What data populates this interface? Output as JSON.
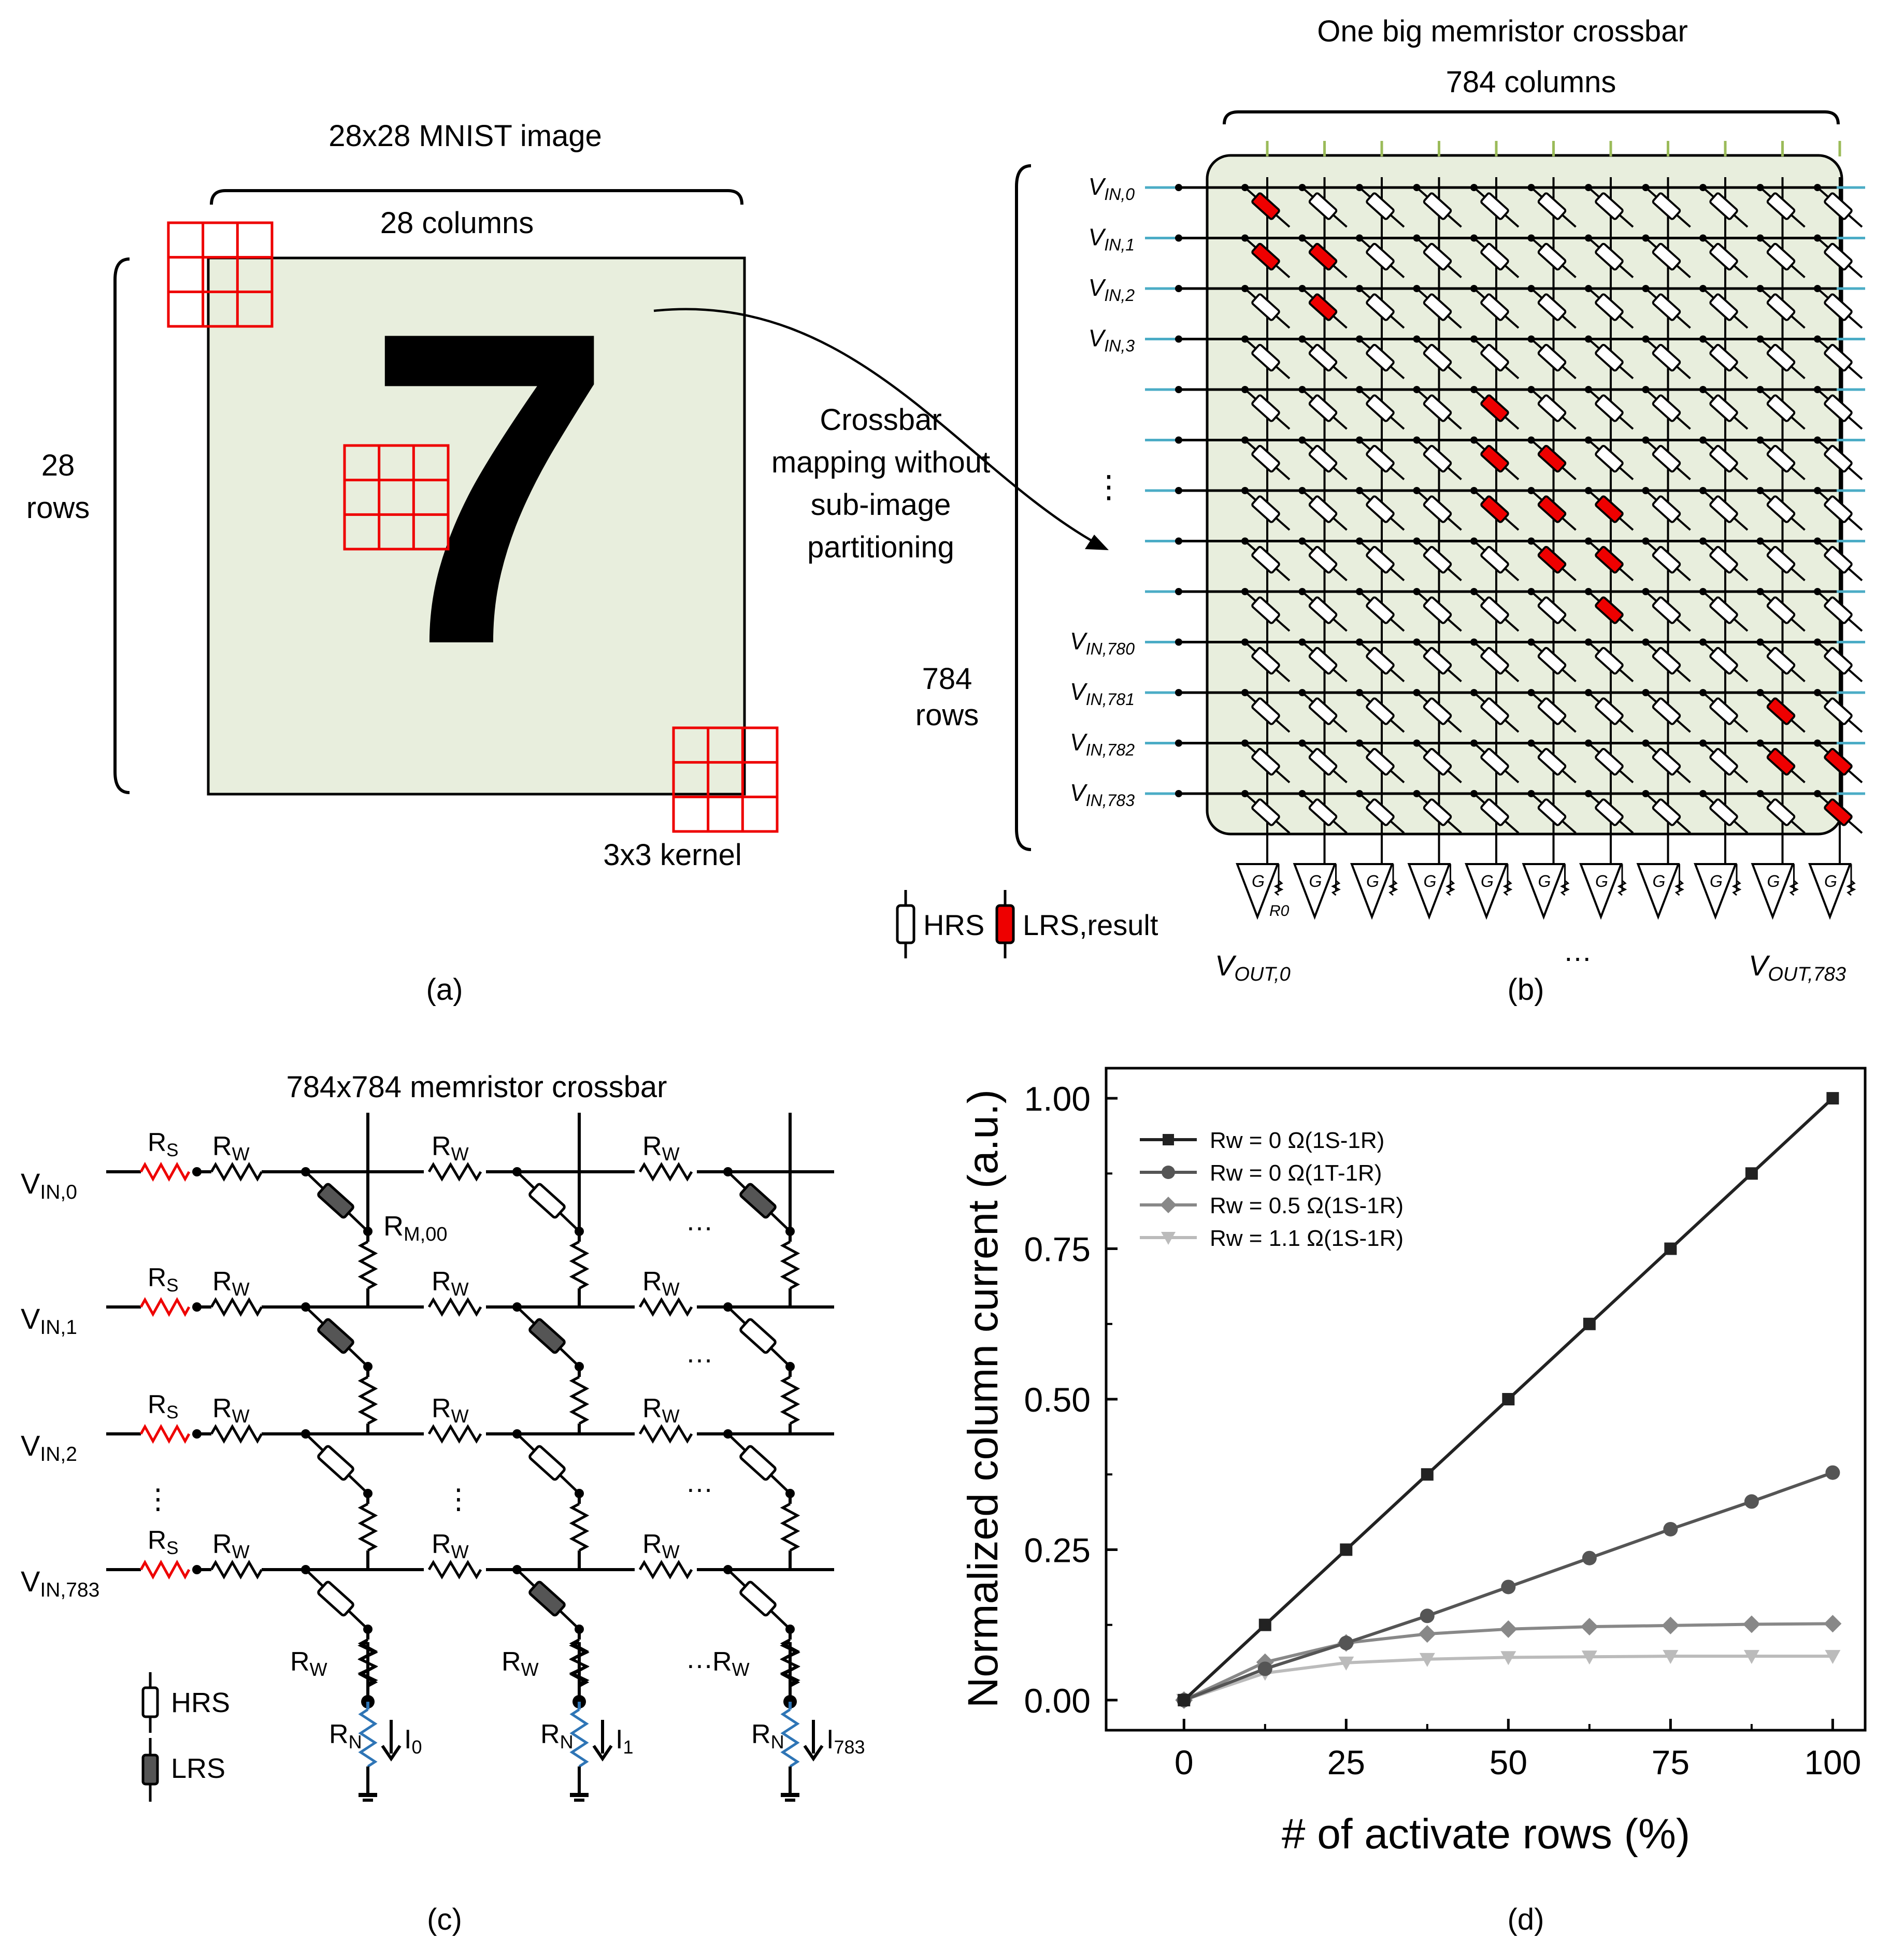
{
  "panel_a": {
    "image_title": "28x28 MNIST image",
    "columns_label": "28 columns",
    "rows_label_line1": "28",
    "rows_label_line2": "rows",
    "digit": "7",
    "kernel_label": "3x3 kernel",
    "caption": "(a)"
  },
  "mapping_label": [
    "Crossbar",
    "mapping without",
    "sub-image",
    "partitioning"
  ],
  "panel_b": {
    "title": "One big memristor crossbar",
    "columns_label": "784 columns",
    "rows_label_line1": "784",
    "rows_label_line2": "rows",
    "row_inputs": [
      "V_IN,0",
      "V_IN,1",
      "V_IN,2",
      "V_IN,3",
      "",
      "",
      "",
      "",
      "",
      "V_IN,780",
      "V_IN,781",
      "V_IN,782",
      "V_IN,783"
    ],
    "row_labels": [
      {
        "main": "V",
        "sub": "IN,0"
      },
      {
        "main": "V",
        "sub": "IN,1"
      },
      {
        "main": "V",
        "sub": "IN,2"
      },
      {
        "main": "V",
        "sub": "IN,3"
      },
      {
        "main": "",
        "sub": ""
      },
      {
        "main": "",
        "sub": ""
      },
      {
        "main": "",
        "sub": ""
      },
      {
        "main": "",
        "sub": ""
      },
      {
        "main": "",
        "sub": ""
      },
      {
        "main": "V",
        "sub": "IN,780"
      },
      {
        "main": "V",
        "sub": "IN,781"
      },
      {
        "main": "V",
        "sub": "IN,782"
      },
      {
        "main": "V",
        "sub": "IN,783"
      }
    ],
    "row_ellipsis": "⋮",
    "amp_gain_label": "G",
    "amp_resistor_label": "R0",
    "out_first": {
      "main": "V",
      "sub": "OUT,0"
    },
    "out_last": {
      "main": "V",
      "sub": "OUT,783"
    },
    "out_ellipsis": "…",
    "legend_hrs": "HRS",
    "legend_lrs": "LRS,result",
    "lrs_cells": [
      [
        0,
        0
      ],
      [
        1,
        0
      ],
      [
        1,
        1
      ],
      [
        2,
        1
      ],
      [
        4,
        4
      ],
      [
        5,
        4
      ],
      [
        5,
        5
      ],
      [
        6,
        4
      ],
      [
        6,
        5
      ],
      [
        6,
        6
      ],
      [
        7,
        5
      ],
      [
        7,
        6
      ],
      [
        8,
        6
      ],
      [
        10,
        9
      ],
      [
        11,
        9
      ],
      [
        11,
        10
      ],
      [
        12,
        10
      ]
    ],
    "caption": "(b)"
  },
  "panel_c": {
    "title": "784x784 memristor crossbar",
    "inputs": [
      {
        "main": "V",
        "sub": "IN,0"
      },
      {
        "main": "V",
        "sub": "IN,1"
      },
      {
        "main": "V",
        "sub": "IN,2"
      },
      {
        "main": "V",
        "sub": "IN,783"
      }
    ],
    "rs_label": {
      "main": "R",
      "sub": "S"
    },
    "rw_label": {
      "main": "R",
      "sub": "W"
    },
    "rm_label": {
      "main": "R",
      "sub": "M,00"
    },
    "rn_label": {
      "main": "R",
      "sub": "N"
    },
    "currents": [
      {
        "main": "I",
        "sub": "0"
      },
      {
        "main": "I",
        "sub": "1"
      },
      {
        "main": "I",
        "sub": "783"
      }
    ],
    "ellipsis_h": "…",
    "ellipsis_v": "⋮",
    "legend_hrs": "HRS",
    "legend_lrs": "LRS",
    "lrs_cells": [
      [
        0,
        0
      ],
      [
        0,
        2
      ],
      [
        1,
        0
      ],
      [
        1,
        1
      ],
      [
        3,
        1
      ]
    ],
    "caption": "(c)"
  },
  "panel_d": {
    "caption": "(d)"
  },
  "chart_data": {
    "type": "line",
    "title": "",
    "xlabel": "# of activate rows (%)",
    "ylabel": "Normalized column current (a.u.)",
    "xlim": [
      -12,
      105
    ],
    "ylim": [
      -0.05,
      1.05
    ],
    "xticks": [
      0,
      25,
      50,
      75,
      100
    ],
    "yticks": [
      0.0,
      0.25,
      0.5,
      0.75,
      1.0
    ],
    "xtick_labels": [
      "0",
      "25",
      "50",
      "75",
      "100"
    ],
    "ytick_labels": [
      "0.00",
      "0.25",
      "0.50",
      "0.75",
      "1.00"
    ],
    "legend_position": "top-left",
    "x": [
      0,
      12.5,
      25,
      37.5,
      50,
      62.5,
      75,
      87.5,
      100
    ],
    "series": [
      {
        "name": "Rw = 0 Ω(1S-1R)",
        "color": "#222222",
        "marker": "square",
        "values": [
          0,
          0.125,
          0.25,
          0.375,
          0.5,
          0.625,
          0.75,
          0.875,
          1.0
        ]
      },
      {
        "name": "Rw = 0 Ω(1T-1R)",
        "color": "#555555",
        "marker": "circle",
        "values": [
          0,
          0.052,
          0.095,
          0.14,
          0.188,
          0.236,
          0.284,
          0.33,
          0.378
        ]
      },
      {
        "name": "Rw = 0.5 Ω(1S-1R)",
        "color": "#888888",
        "marker": "diamond",
        "values": [
          0,
          0.063,
          0.095,
          0.11,
          0.118,
          0.122,
          0.124,
          0.126,
          0.127
        ]
      },
      {
        "name": "Rw = 1.1 Ω(1S-1R)",
        "color": "#bbbbbb",
        "marker": "triangle-down",
        "values": [
          0,
          0.045,
          0.062,
          0.068,
          0.071,
          0.072,
          0.073,
          0.073,
          0.073
        ]
      }
    ]
  }
}
